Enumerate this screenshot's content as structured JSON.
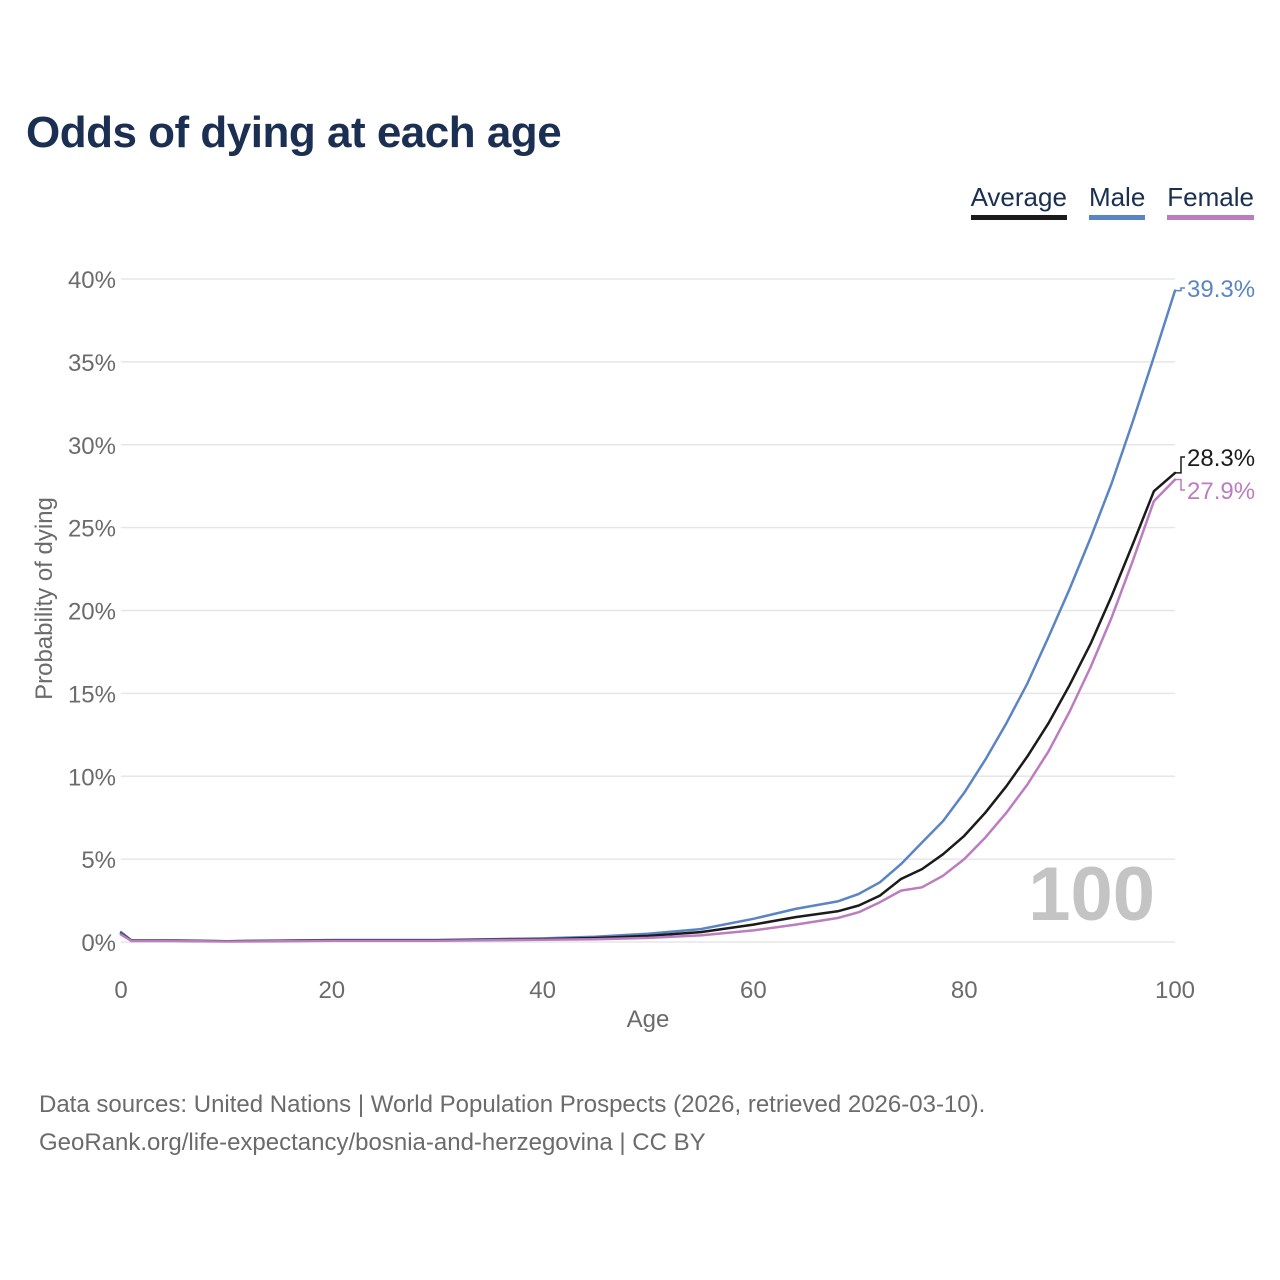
{
  "title": "Odds of dying at each age",
  "legend": {
    "average": "Average",
    "male": "Male",
    "female": "Female"
  },
  "colors": {
    "average": "#1b1b1b",
    "male": "#5b84c4",
    "female": "#bb7dbf",
    "grid": "#e6e6e6",
    "axis_text": "#6b6b6b",
    "watermark": "#c4c4c4"
  },
  "watermark": "100",
  "footer": {
    "line1": "Data sources: United Nations | World Population Prospects (2026, retrieved 2026-03-10).",
    "line2": "GeoRank.org/life-expectancy/bosnia-and-herzegovina | CC BY"
  },
  "chart_data": {
    "type": "line",
    "title": "Odds of dying at each age",
    "xlabel": "Age",
    "ylabel": "Probability of dying",
    "xlim": [
      0,
      100
    ],
    "ylim": [
      0,
      40
    ],
    "xticks": [
      0,
      20,
      40,
      60,
      80,
      100
    ],
    "yticks": [
      0,
      5,
      10,
      15,
      20,
      25,
      30,
      35,
      40
    ],
    "ytick_labels": [
      "0%",
      "5%",
      "10%",
      "15%",
      "20%",
      "25%",
      "30%",
      "35%",
      "40%"
    ],
    "xtick_labels": [
      "0",
      "20",
      "40",
      "60",
      "80",
      "100"
    ],
    "grid": true,
    "legend_position": "top-right",
    "end_labels": {
      "male": "39.3%",
      "average": "28.3%",
      "female": "27.9%"
    },
    "x": [
      0,
      1,
      5,
      10,
      15,
      20,
      25,
      30,
      35,
      40,
      45,
      50,
      55,
      60,
      64,
      68,
      70,
      72,
      74,
      76,
      78,
      80,
      82,
      84,
      86,
      88,
      90,
      92,
      94,
      96,
      98,
      100
    ],
    "series": [
      {
        "name": "Male",
        "key": "male",
        "values": [
          0.6,
          0.1,
          0.1,
          0.05,
          0.08,
          0.12,
          0.12,
          0.12,
          0.17,
          0.22,
          0.32,
          0.5,
          0.78,
          1.4,
          2.0,
          2.45,
          2.9,
          3.6,
          4.7,
          6.0,
          7.3,
          9.0,
          11.0,
          13.2,
          15.6,
          18.4,
          21.3,
          24.4,
          27.7,
          31.4,
          35.3,
          39.3
        ]
      },
      {
        "name": "Average",
        "key": "average",
        "values": [
          0.5,
          0.08,
          0.08,
          0.04,
          0.07,
          0.1,
          0.1,
          0.1,
          0.13,
          0.17,
          0.24,
          0.37,
          0.6,
          1.05,
          1.5,
          1.85,
          2.2,
          2.8,
          3.8,
          4.4,
          5.3,
          6.4,
          7.8,
          9.4,
          11.2,
          13.2,
          15.5,
          18.0,
          20.9,
          24.0,
          27.2,
          28.3
        ]
      },
      {
        "name": "Female",
        "key": "female",
        "values": [
          0.45,
          0.06,
          0.06,
          0.03,
          0.05,
          0.07,
          0.08,
          0.08,
          0.1,
          0.13,
          0.17,
          0.25,
          0.4,
          0.7,
          1.05,
          1.45,
          1.8,
          2.4,
          3.1,
          3.3,
          4.0,
          5.0,
          6.3,
          7.8,
          9.5,
          11.5,
          13.9,
          16.6,
          19.6,
          23.0,
          26.6,
          27.9
        ]
      }
    ]
  }
}
